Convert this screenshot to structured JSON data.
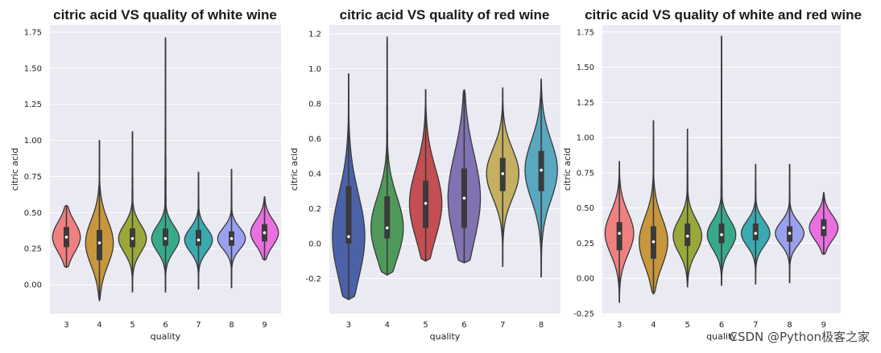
{
  "watermark": "CSDN @Python极客之家",
  "chart_data": [
    {
      "type": "violin",
      "title": "citric acid VS quality of white wine",
      "xlabel": "quality",
      "ylabel": "citric acid",
      "ylim": [
        -0.2,
        1.8
      ],
      "yticks": [
        "0.00",
        "0.25",
        "0.50",
        "0.75",
        "1.00",
        "1.25",
        "1.50",
        "1.75"
      ],
      "categories": [
        "3",
        "4",
        "5",
        "6",
        "7",
        "8",
        "9"
      ],
      "colors": [
        "#f08080",
        "#c8963c",
        "#9aa83a",
        "#38aa8c",
        "#3aaab0",
        "#9aa0f0",
        "#e870e0"
      ],
      "violins": [
        {
          "min": 0.12,
          "q1": 0.26,
          "median": 0.33,
          "q3": 0.4,
          "max": 0.55
        },
        {
          "min": -0.11,
          "q1": 0.17,
          "median": 0.29,
          "q3": 0.38,
          "max": 1.0
        },
        {
          "min": -0.05,
          "q1": 0.26,
          "median": 0.32,
          "q3": 0.39,
          "max": 1.06
        },
        {
          "min": -0.05,
          "q1": 0.27,
          "median": 0.32,
          "q3": 0.39,
          "max": 1.71
        },
        {
          "min": -0.03,
          "q1": 0.27,
          "median": 0.31,
          "q3": 0.38,
          "max": 0.78
        },
        {
          "min": -0.02,
          "q1": 0.27,
          "median": 0.32,
          "q3": 0.37,
          "max": 0.8
        },
        {
          "min": 0.17,
          "q1": 0.3,
          "median": 0.36,
          "q3": 0.42,
          "max": 0.61
        }
      ]
    },
    {
      "type": "violin",
      "title": "citric acid VS quality of red wine",
      "xlabel": "quality",
      "ylabel": "citric acid",
      "ylim": [
        -0.4,
        1.25
      ],
      "yticks": [
        "-0.2",
        "0.0",
        "0.2",
        "0.4",
        "0.6",
        "0.8",
        "1.0",
        "1.2"
      ],
      "categories": [
        "3",
        "4",
        "5",
        "6",
        "7",
        "8"
      ],
      "colors": [
        "#4c62a8",
        "#4f9a5a",
        "#c44e52",
        "#8172b2",
        "#c4b060",
        "#5aa8c0"
      ],
      "violins": [
        {
          "min": -0.32,
          "q1": 0.0,
          "median": 0.04,
          "q3": 0.33,
          "max": 0.97
        },
        {
          "min": -0.18,
          "q1": 0.03,
          "median": 0.09,
          "q3": 0.27,
          "max": 1.18
        },
        {
          "min": -0.1,
          "q1": 0.09,
          "median": 0.23,
          "q3": 0.36,
          "max": 0.88
        },
        {
          "min": -0.11,
          "q1": 0.09,
          "median": 0.26,
          "q3": 0.43,
          "max": 0.88
        },
        {
          "min": -0.13,
          "q1": 0.3,
          "median": 0.4,
          "q3": 0.49,
          "max": 0.89
        },
        {
          "min": -0.19,
          "q1": 0.3,
          "median": 0.42,
          "q3": 0.53,
          "max": 0.94
        }
      ]
    },
    {
      "type": "violin",
      "title": "citric acid VS quality of white and red wine",
      "xlabel": "quality",
      "ylabel": "citric acid",
      "ylim": [
        -0.25,
        1.8
      ],
      "yticks": [
        "-0.25",
        "0.00",
        "0.25",
        "0.50",
        "0.75",
        "1.00",
        "1.25",
        "1.50",
        "1.75"
      ],
      "categories": [
        "3",
        "4",
        "5",
        "6",
        "7",
        "8",
        "9"
      ],
      "colors": [
        "#f08080",
        "#c8963c",
        "#9aa83a",
        "#38aa8c",
        "#3aaab0",
        "#9aa0f0",
        "#e870e0"
      ],
      "violins": [
        {
          "min": -0.17,
          "q1": 0.2,
          "median": 0.32,
          "q3": 0.4,
          "max": 0.83
        },
        {
          "min": -0.11,
          "q1": 0.14,
          "median": 0.26,
          "q3": 0.37,
          "max": 1.12
        },
        {
          "min": -0.06,
          "q1": 0.23,
          "median": 0.3,
          "q3": 0.39,
          "max": 1.06
        },
        {
          "min": -0.05,
          "q1": 0.25,
          "median": 0.31,
          "q3": 0.39,
          "max": 1.72
        },
        {
          "min": -0.04,
          "q1": 0.27,
          "median": 0.32,
          "q3": 0.39,
          "max": 0.81
        },
        {
          "min": -0.03,
          "q1": 0.26,
          "median": 0.32,
          "q3": 0.37,
          "max": 0.81
        },
        {
          "min": 0.17,
          "q1": 0.3,
          "median": 0.36,
          "q3": 0.42,
          "max": 0.61
        }
      ]
    }
  ]
}
